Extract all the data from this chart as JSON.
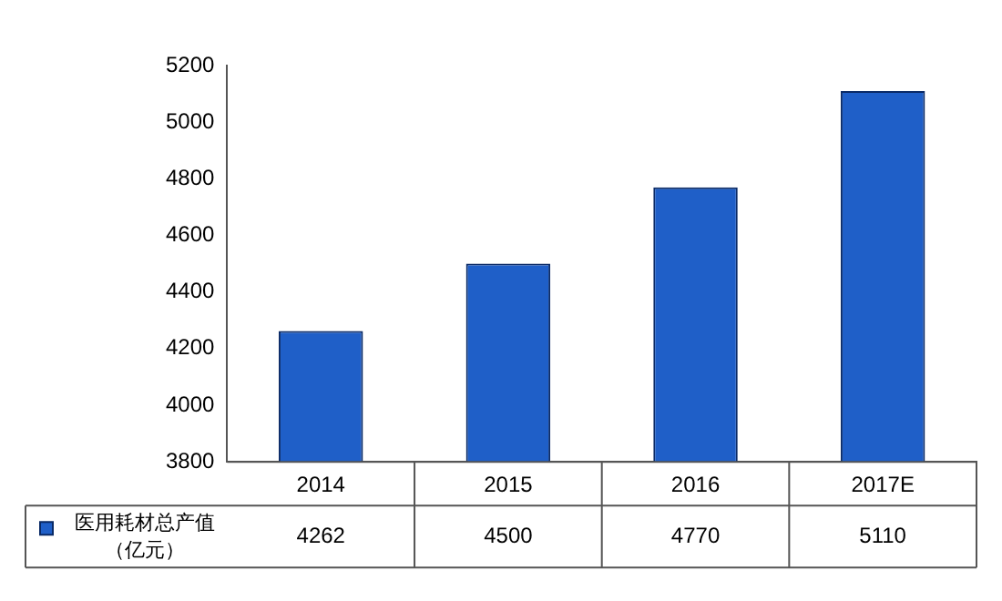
{
  "chart_data": {
    "type": "bar",
    "categories": [
      "2014",
      "2015",
      "2016",
      "2017E"
    ],
    "series": [
      {
        "name": "医用耗材总产值（亿元）",
        "color": "#1f5fc8",
        "values": [
          4262,
          4500,
          4770,
          5110
        ]
      }
    ],
    "ylim": [
      3800,
      5200
    ],
    "yticks": [
      3800,
      4000,
      4200,
      4400,
      4600,
      4800,
      5000,
      5200
    ],
    "grid": false,
    "legend": "bottom",
    "data_labels": true
  }
}
